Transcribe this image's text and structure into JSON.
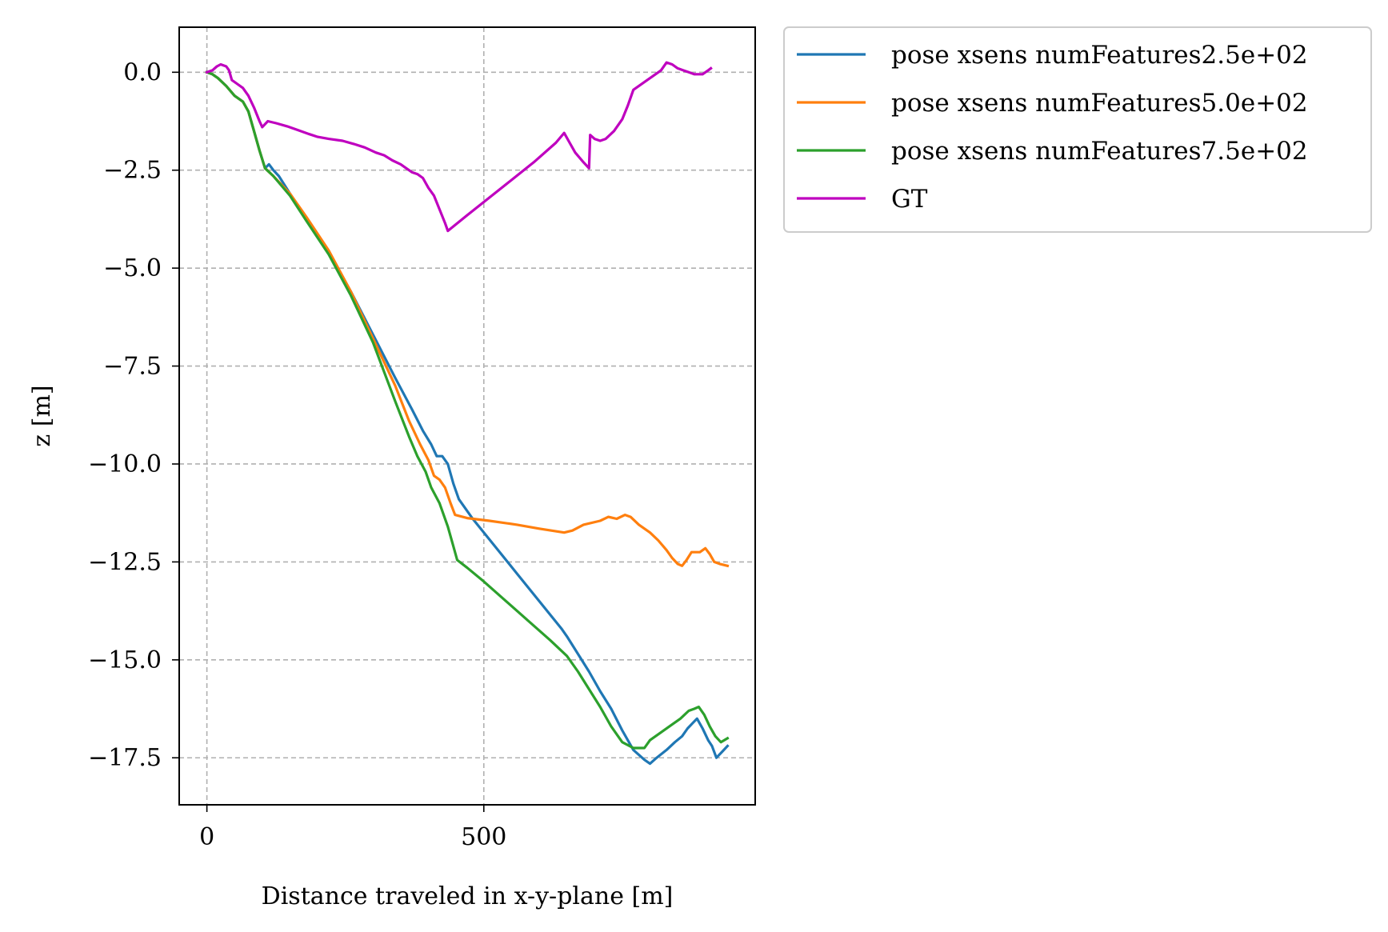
{
  "chart_data": {
    "type": "line",
    "title": "",
    "xlabel": "Distance traveled in x-y-plane [m]",
    "ylabel": "z [m]",
    "xlim": [
      -50,
      990
    ],
    "ylim": [
      -18.7,
      1.15
    ],
    "xticks": [
      0,
      500
    ],
    "xtick_labels": [
      "0",
      "500"
    ],
    "yticks": [
      0.0,
      -2.5,
      -5.0,
      -7.5,
      -10.0,
      -12.5,
      -15.0,
      -17.5
    ],
    "ytick_labels": [
      "0.0",
      "−2.5",
      "−5.0",
      "−7.5",
      "−10.0",
      "−12.5",
      "−15.0",
      "−17.5"
    ],
    "grid": true,
    "legend_position": "outside-upper-right",
    "series": [
      {
        "name": "pose xsens numFeatures2.5e+02",
        "color": "#1f77b4",
        "points": [
          [
            0,
            0
          ],
          [
            10,
            -0.05
          ],
          [
            20,
            -0.15
          ],
          [
            35,
            -0.35
          ],
          [
            50,
            -0.6
          ],
          [
            65,
            -0.75
          ],
          [
            75,
            -1.0
          ],
          [
            85,
            -1.5
          ],
          [
            95,
            -2.0
          ],
          [
            105,
            -2.45
          ],
          [
            112,
            -2.35
          ],
          [
            120,
            -2.5
          ],
          [
            130,
            -2.65
          ],
          [
            150,
            -3.1
          ],
          [
            180,
            -3.75
          ],
          [
            220,
            -4.6
          ],
          [
            260,
            -5.6
          ],
          [
            300,
            -6.7
          ],
          [
            340,
            -7.8
          ],
          [
            370,
            -8.6
          ],
          [
            390,
            -9.15
          ],
          [
            405,
            -9.5
          ],
          [
            415,
            -9.8
          ],
          [
            425,
            -9.8
          ],
          [
            435,
            -10.0
          ],
          [
            445,
            -10.5
          ],
          [
            455,
            -10.9
          ],
          [
            480,
            -11.4
          ],
          [
            520,
            -12.1
          ],
          [
            560,
            -12.8
          ],
          [
            600,
            -13.5
          ],
          [
            640,
            -14.2
          ],
          [
            650,
            -14.4
          ],
          [
            670,
            -14.85
          ],
          [
            690,
            -15.3
          ],
          [
            710,
            -15.8
          ],
          [
            730,
            -16.25
          ],
          [
            750,
            -16.8
          ],
          [
            770,
            -17.3
          ],
          [
            790,
            -17.55
          ],
          [
            800,
            -17.65
          ],
          [
            812,
            -17.5
          ],
          [
            830,
            -17.3
          ],
          [
            845,
            -17.1
          ],
          [
            858,
            -16.95
          ],
          [
            868,
            -16.75
          ],
          [
            878,
            -16.6
          ],
          [
            885,
            -16.5
          ],
          [
            895,
            -16.75
          ],
          [
            905,
            -17.05
          ],
          [
            912,
            -17.2
          ],
          [
            920,
            -17.5
          ],
          [
            930,
            -17.35
          ],
          [
            940,
            -17.2
          ]
        ]
      },
      {
        "name": "pose xsens numFeatures5.0e+02",
        "color": "#ff7f0e",
        "points": [
          [
            0,
            0
          ],
          [
            10,
            -0.05
          ],
          [
            20,
            -0.15
          ],
          [
            35,
            -0.35
          ],
          [
            50,
            -0.6
          ],
          [
            65,
            -0.75
          ],
          [
            75,
            -1.0
          ],
          [
            85,
            -1.5
          ],
          [
            95,
            -2.0
          ],
          [
            105,
            -2.45
          ],
          [
            120,
            -2.65
          ],
          [
            150,
            -3.1
          ],
          [
            180,
            -3.7
          ],
          [
            220,
            -4.55
          ],
          [
            260,
            -5.6
          ],
          [
            300,
            -6.8
          ],
          [
            340,
            -8.0
          ],
          [
            365,
            -8.9
          ],
          [
            385,
            -9.5
          ],
          [
            400,
            -9.9
          ],
          [
            410,
            -10.3
          ],
          [
            420,
            -10.4
          ],
          [
            430,
            -10.6
          ],
          [
            440,
            -11.0
          ],
          [
            448,
            -11.3
          ],
          [
            470,
            -11.38
          ],
          [
            510,
            -11.45
          ],
          [
            560,
            -11.55
          ],
          [
            600,
            -11.65
          ],
          [
            645,
            -11.75
          ],
          [
            660,
            -11.7
          ],
          [
            680,
            -11.55
          ],
          [
            710,
            -11.45
          ],
          [
            725,
            -11.35
          ],
          [
            740,
            -11.4
          ],
          [
            755,
            -11.3
          ],
          [
            765,
            -11.35
          ],
          [
            780,
            -11.55
          ],
          [
            800,
            -11.75
          ],
          [
            815,
            -11.95
          ],
          [
            830,
            -12.2
          ],
          [
            840,
            -12.4
          ],
          [
            850,
            -12.55
          ],
          [
            858,
            -12.6
          ],
          [
            866,
            -12.45
          ],
          [
            875,
            -12.25
          ],
          [
            890,
            -12.25
          ],
          [
            900,
            -12.15
          ],
          [
            908,
            -12.3
          ],
          [
            916,
            -12.5
          ],
          [
            926,
            -12.55
          ],
          [
            940,
            -12.6
          ]
        ]
      },
      {
        "name": "pose xsens numFeatures7.5e+02",
        "color": "#2ca02c",
        "points": [
          [
            0,
            0
          ],
          [
            10,
            -0.05
          ],
          [
            20,
            -0.15
          ],
          [
            35,
            -0.35
          ],
          [
            50,
            -0.6
          ],
          [
            65,
            -0.75
          ],
          [
            75,
            -1.0
          ],
          [
            85,
            -1.5
          ],
          [
            95,
            -2.0
          ],
          [
            105,
            -2.45
          ],
          [
            120,
            -2.65
          ],
          [
            150,
            -3.15
          ],
          [
            180,
            -3.8
          ],
          [
            220,
            -4.65
          ],
          [
            260,
            -5.7
          ],
          [
            300,
            -6.9
          ],
          [
            340,
            -8.4
          ],
          [
            365,
            -9.3
          ],
          [
            380,
            -9.8
          ],
          [
            395,
            -10.2
          ],
          [
            405,
            -10.6
          ],
          [
            420,
            -11.0
          ],
          [
            435,
            -11.6
          ],
          [
            445,
            -12.1
          ],
          [
            452,
            -12.45
          ],
          [
            470,
            -12.65
          ],
          [
            500,
            -13.0
          ],
          [
            540,
            -13.5
          ],
          [
            580,
            -14.0
          ],
          [
            620,
            -14.5
          ],
          [
            650,
            -14.9
          ],
          [
            670,
            -15.3
          ],
          [
            690,
            -15.75
          ],
          [
            710,
            -16.2
          ],
          [
            730,
            -16.7
          ],
          [
            750,
            -17.1
          ],
          [
            770,
            -17.25
          ],
          [
            790,
            -17.25
          ],
          [
            800,
            -17.05
          ],
          [
            820,
            -16.85
          ],
          [
            840,
            -16.65
          ],
          [
            855,
            -16.5
          ],
          [
            870,
            -16.3
          ],
          [
            880,
            -16.25
          ],
          [
            888,
            -16.2
          ],
          [
            898,
            -16.4
          ],
          [
            908,
            -16.7
          ],
          [
            918,
            -16.95
          ],
          [
            928,
            -17.1
          ],
          [
            940,
            -17.0
          ]
        ]
      },
      {
        "name": "GT",
        "color": "#bf00bf",
        "points": [
          [
            0,
            0
          ],
          [
            10,
            0.05
          ],
          [
            18,
            0.15
          ],
          [
            25,
            0.2
          ],
          [
            35,
            0.15
          ],
          [
            40,
            0.05
          ],
          [
            45,
            -0.2
          ],
          [
            55,
            -0.3
          ],
          [
            65,
            -0.4
          ],
          [
            75,
            -0.6
          ],
          [
            85,
            -0.9
          ],
          [
            95,
            -1.25
          ],
          [
            100,
            -1.4
          ],
          [
            110,
            -1.25
          ],
          [
            125,
            -1.3
          ],
          [
            145,
            -1.38
          ],
          [
            165,
            -1.48
          ],
          [
            185,
            -1.58
          ],
          [
            200,
            -1.65
          ],
          [
            220,
            -1.7
          ],
          [
            245,
            -1.75
          ],
          [
            265,
            -1.83
          ],
          [
            285,
            -1.92
          ],
          [
            305,
            -2.05
          ],
          [
            320,
            -2.12
          ],
          [
            335,
            -2.25
          ],
          [
            350,
            -2.35
          ],
          [
            360,
            -2.45
          ],
          [
            370,
            -2.55
          ],
          [
            380,
            -2.6
          ],
          [
            390,
            -2.7
          ],
          [
            400,
            -2.95
          ],
          [
            410,
            -3.15
          ],
          [
            420,
            -3.5
          ],
          [
            430,
            -3.85
          ],
          [
            435,
            -4.05
          ],
          [
            470,
            -3.65
          ],
          [
            510,
            -3.2
          ],
          [
            550,
            -2.75
          ],
          [
            590,
            -2.3
          ],
          [
            630,
            -1.8
          ],
          [
            645,
            -1.55
          ],
          [
            655,
            -1.8
          ],
          [
            665,
            -2.05
          ],
          [
            680,
            -2.3
          ],
          [
            690,
            -2.45
          ],
          [
            692,
            -1.6
          ],
          [
            700,
            -1.7
          ],
          [
            710,
            -1.75
          ],
          [
            720,
            -1.7
          ],
          [
            735,
            -1.5
          ],
          [
            750,
            -1.2
          ],
          [
            760,
            -0.85
          ],
          [
            770,
            -0.45
          ],
          [
            790,
            -0.25
          ],
          [
            810,
            -0.05
          ],
          [
            820,
            0.05
          ],
          [
            830,
            0.25
          ],
          [
            840,
            0.2
          ],
          [
            850,
            0.1
          ],
          [
            860,
            0.05
          ],
          [
            870,
            0.0
          ],
          [
            880,
            -0.05
          ],
          [
            895,
            -0.05
          ],
          [
            905,
            0.05
          ],
          [
            910,
            0.1
          ]
        ]
      }
    ]
  }
}
